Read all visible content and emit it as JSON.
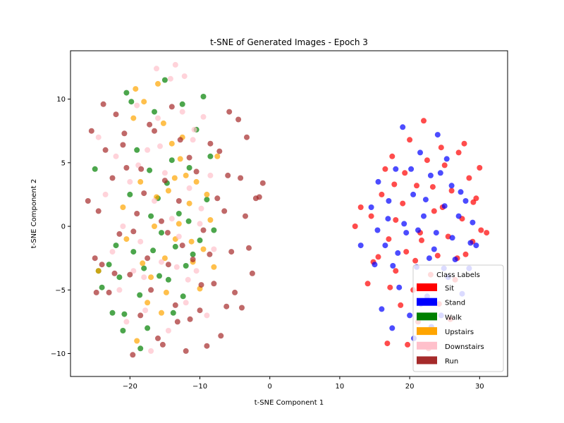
{
  "chart_data": {
    "type": "scatter",
    "title": "t-SNE of Generated Images - Epoch 3",
    "xlabel": "t-SNE Component 1",
    "ylabel": "t-SNE Component 2",
    "xlim": [
      -28.5,
      34.0
    ],
    "ylim": [
      -11.8,
      13.8
    ],
    "xticks": [
      -20,
      -10,
      0,
      10,
      20,
      30
    ],
    "yticks": [
      -10,
      -5,
      0,
      5,
      10
    ],
    "grid": false,
    "legend": {
      "title": "Class Labels",
      "placement": "lower right",
      "entries": [
        {
          "label": "Sit",
          "color": "#ff0000"
        },
        {
          "label": "Stand",
          "color": "#0000ff"
        },
        {
          "label": "Walk",
          "color": "#008000"
        },
        {
          "label": "Upstairs",
          "color": "#ffa500"
        },
        {
          "label": "Downstairs",
          "color": "#ffc0cb"
        },
        {
          "label": "Run",
          "color": "#a52a2a"
        }
      ]
    },
    "series": [
      {
        "name": "Sit",
        "color": "#ff0000",
        "points": [
          [
            13,
            1.5
          ],
          [
            14,
            -4.5
          ],
          [
            14.8,
            -2.8
          ],
          [
            16,
            2.5
          ],
          [
            16.5,
            4.5
          ],
          [
            17,
            -1
          ],
          [
            17.5,
            5.5
          ],
          [
            18,
            0.5
          ],
          [
            18,
            -3.5
          ],
          [
            19,
            1.8
          ],
          [
            19.5,
            -2
          ],
          [
            20,
            6.8
          ],
          [
            20.5,
            -5
          ],
          [
            21,
            3.2
          ],
          [
            21.5,
            -0.5
          ],
          [
            22,
            8.3
          ],
          [
            22.5,
            5.2
          ],
          [
            23,
            -3.8
          ],
          [
            23.5,
            1.2
          ],
          [
            24,
            -2.3
          ],
          [
            24.5,
            6.2
          ],
          [
            25,
            4.8
          ],
          [
            25.5,
            -0.8
          ],
          [
            26,
            2.8
          ],
          [
            26.5,
            -4.2
          ],
          [
            27,
            5.8
          ],
          [
            27.5,
            0.6
          ],
          [
            28,
            -2.2
          ],
          [
            28.5,
            3.8
          ],
          [
            29,
            -1.2
          ],
          [
            29.5,
            2.2
          ],
          [
            30,
            4.6
          ],
          [
            30.2,
            -0.3
          ],
          [
            31,
            -0.5
          ],
          [
            16.8,
            -9.2
          ],
          [
            19.7,
            -9.3
          ],
          [
            18.7,
            -6.2
          ],
          [
            21.2,
            -7.5
          ],
          [
            24.2,
            -6.1
          ],
          [
            25.8,
            -7.3
          ],
          [
            22.7,
            -9.6
          ],
          [
            20.8,
            -2.7
          ],
          [
            17.8,
            3.3
          ],
          [
            26.8,
            -2.5
          ],
          [
            23.3,
            3.1
          ],
          [
            12.2,
            0
          ],
          [
            14.5,
            0.8
          ],
          [
            15.5,
            -2.4
          ],
          [
            27.8,
            6.5
          ],
          [
            29.1,
            1.9
          ],
          [
            21.7,
            -1.1
          ],
          [
            19.3,
            4.2
          ],
          [
            24.7,
            1.5
          ],
          [
            17.2,
            -4.8
          ]
        ]
      },
      {
        "name": "Stand",
        "color": "#0000ff",
        "points": [
          [
            13,
            -1.5
          ],
          [
            14.5,
            1.5
          ],
          [
            15,
            -3
          ],
          [
            15.5,
            3.5
          ],
          [
            16,
            -6.5
          ],
          [
            16.5,
            -1.5
          ],
          [
            17,
            2
          ],
          [
            17.5,
            -8
          ],
          [
            18,
            4.5
          ],
          [
            18.5,
            -4.8
          ],
          [
            19,
            7.8
          ],
          [
            19.5,
            -0.5
          ],
          [
            20,
            -7
          ],
          [
            20.5,
            2.5
          ],
          [
            21,
            -3.2
          ],
          [
            21.5,
            5.8
          ],
          [
            22,
            0.8
          ],
          [
            22.5,
            -5.5
          ],
          [
            23,
            4
          ],
          [
            23.5,
            -1.8
          ],
          [
            24,
            7.2
          ],
          [
            24.5,
            -7
          ],
          [
            25,
            1.6
          ],
          [
            25.5,
            -4
          ],
          [
            26,
            3.2
          ],
          [
            26.5,
            -2.6
          ],
          [
            27,
            0.8
          ],
          [
            27.5,
            -5.3
          ],
          [
            28,
            2
          ],
          [
            28.5,
            -3.3
          ],
          [
            29,
            0.3
          ],
          [
            29.5,
            -1.5
          ],
          [
            22.3,
            2.1
          ],
          [
            21.2,
            -0.3
          ],
          [
            23.8,
            -0.5
          ],
          [
            20.2,
            4.5
          ],
          [
            24.4,
            4.2
          ],
          [
            18.3,
            -2.1
          ],
          [
            26.1,
            -0.9
          ],
          [
            19.2,
            0.2
          ],
          [
            22.8,
            -2.5
          ],
          [
            25.3,
            5.3
          ],
          [
            16.9,
            0.6
          ],
          [
            21.6,
            -6.1
          ],
          [
            23.1,
            -7.9
          ],
          [
            20.6,
            -8.8
          ],
          [
            27.3,
            2.7
          ],
          [
            17.6,
            -3.1
          ],
          [
            15.4,
            -0.3
          ],
          [
            28.7,
            -1.3
          ],
          [
            24.9,
            -3.3
          ]
        ]
      },
      {
        "name": "Walk",
        "color": "#008000",
        "points": [
          [
            -25,
            4.5
          ],
          [
            -24.5,
            -3.5
          ],
          [
            -24,
            -4.8
          ],
          [
            -23,
            -3
          ],
          [
            -22.5,
            -6.8
          ],
          [
            -22,
            -1.5
          ],
          [
            -21.5,
            -4
          ],
          [
            -21,
            -8.2
          ],
          [
            -20.5,
            10.5
          ],
          [
            -20,
            2.5
          ],
          [
            -19.5,
            -2
          ],
          [
            -19,
            6
          ],
          [
            -18.5,
            -9.6
          ],
          [
            -18,
            -3.3
          ],
          [
            -17.5,
            -8
          ],
          [
            -17,
            0.8
          ],
          [
            -16.5,
            9
          ],
          [
            -16,
            2.2
          ],
          [
            -15.5,
            -0.5
          ],
          [
            -15,
            11.5
          ],
          [
            -14.5,
            -4.2
          ],
          [
            -14,
            5.2
          ],
          [
            -13.5,
            -1.6
          ],
          [
            -13,
            1
          ],
          [
            -12.5,
            9.6
          ],
          [
            -12,
            -3.1
          ],
          [
            -11.5,
            4.6
          ],
          [
            -11,
            -2.2
          ],
          [
            -10.5,
            7.6
          ],
          [
            -10,
            -1.1
          ],
          [
            -9.5,
            10.2
          ],
          [
            -9,
            2.1
          ],
          [
            -8.5,
            5.5
          ],
          [
            -8,
            -0.3
          ],
          [
            -19.8,
            9.8
          ],
          [
            -18.6,
            -5.4
          ],
          [
            -17.2,
            4.4
          ],
          [
            -13.8,
            -6.8
          ],
          [
            -12.4,
            -5.5
          ],
          [
            -16.7,
            -1.9
          ],
          [
            -11.6,
            0.4
          ],
          [
            -14.7,
            3.4
          ],
          [
            -20.8,
            -6.9
          ],
          [
            -15.8,
            -3.9
          ]
        ]
      },
      {
        "name": "Upstairs",
        "color": "#ffa500",
        "points": [
          [
            -24.5,
            -3.5
          ],
          [
            -21,
            1.5
          ],
          [
            -20.5,
            -1
          ],
          [
            -19.5,
            8.5
          ],
          [
            -19,
            -9
          ],
          [
            -18.5,
            3.5
          ],
          [
            -18,
            9.8
          ],
          [
            -17.5,
            -6
          ],
          [
            -17,
            -4
          ],
          [
            -16.5,
            0
          ],
          [
            -16,
            11.2
          ],
          [
            -15.5,
            -6.8
          ],
          [
            -15,
            -2.5
          ],
          [
            -14.5,
            2.8
          ],
          [
            -14,
            6.5
          ],
          [
            -13.5,
            -1
          ],
          [
            -13,
            0.2
          ],
          [
            -12.5,
            7
          ],
          [
            -12,
            4
          ],
          [
            -11.5,
            1.8
          ],
          [
            -11,
            -2.8
          ],
          [
            -10.5,
            3.5
          ],
          [
            -10,
            -4.9
          ],
          [
            -9.5,
            -1.8
          ],
          [
            -9,
            2.5
          ],
          [
            -8.5,
            0.5
          ],
          [
            -8,
            -3.2
          ],
          [
            -7.5,
            5.5
          ],
          [
            -19.2,
            10.8
          ],
          [
            -18.2,
            -2.9
          ],
          [
            -15.2,
            8.1
          ],
          [
            -12.8,
            5.3
          ],
          [
            -11.2,
            -1.2
          ],
          [
            -14.8,
            -5.2
          ],
          [
            -16.2,
            2.3
          ],
          [
            -13.6,
            3.8
          ]
        ]
      },
      {
        "name": "Downstairs",
        "color": "#ffc0cb",
        "points": [
          [
            -24.5,
            7
          ],
          [
            -23.5,
            2.5
          ],
          [
            -22.5,
            -2
          ],
          [
            -22,
            5.5
          ],
          [
            -21.5,
            -5
          ],
          [
            -21,
            0
          ],
          [
            -20.5,
            -7.5
          ],
          [
            -20,
            3.5
          ],
          [
            -19.5,
            -3.5
          ],
          [
            -19,
            9.5
          ],
          [
            -18.5,
            -1.2
          ],
          [
            -18,
            -4
          ],
          [
            -17.5,
            6
          ],
          [
            -17,
            -9.8
          ],
          [
            -16.5,
            2
          ],
          [
            -16,
            8.5
          ],
          [
            -15.5,
            -2.8
          ],
          [
            -15,
            4.2
          ],
          [
            -14.5,
            -8.2
          ],
          [
            -14,
            0.6
          ],
          [
            -13.5,
            12.7
          ],
          [
            -13,
            -0.8
          ],
          [
            -12.5,
            9
          ],
          [
            -12,
            -6
          ],
          [
            -11.5,
            3
          ],
          [
            -11,
            6.8
          ],
          [
            -10.5,
            -3.5
          ],
          [
            -10,
            0.2
          ],
          [
            -9.5,
            8.6
          ],
          [
            -9,
            -7
          ],
          [
            -8.5,
            4
          ],
          [
            -8,
            -1.8
          ],
          [
            -16.2,
            12.4
          ],
          [
            -14.2,
            11.6
          ],
          [
            -12.2,
            11.8
          ],
          [
            -10.8,
            7.6
          ],
          [
            -17.8,
            -6.6
          ],
          [
            -13.3,
            -3.2
          ],
          [
            -15.7,
            6.3
          ],
          [
            -11.7,
            -4.2
          ],
          [
            -9.8,
            1.4
          ],
          [
            -18.8,
            4.8
          ]
        ]
      },
      {
        "name": "Run",
        "color": "#a52a2a",
        "points": [
          [
            -26,
            2
          ],
          [
            -25.5,
            7.5
          ],
          [
            -25,
            -2.5
          ],
          [
            -24.5,
            1.2
          ],
          [
            -24,
            -3
          ],
          [
            -23.5,
            6
          ],
          [
            -23,
            -5.2
          ],
          [
            -22.5,
            3.8
          ],
          [
            -22,
            8.8
          ],
          [
            -21.5,
            -0.6
          ],
          [
            -21,
            6.4
          ],
          [
            -20.5,
            4.6
          ],
          [
            -20,
            -3.8
          ],
          [
            -19.5,
            -0.4
          ],
          [
            -19,
            1
          ],
          [
            -18.5,
            -7
          ],
          [
            -18,
            2.6
          ],
          [
            -17.5,
            -2.5
          ],
          [
            -17,
            -5
          ],
          [
            -16.5,
            7.5
          ],
          [
            -16,
            -8.8
          ],
          [
            -15.5,
            0.4
          ],
          [
            -15,
            3.6
          ],
          [
            -14.5,
            -3
          ],
          [
            -14,
            9.4
          ],
          [
            -13.5,
            -6.2
          ],
          [
            -13,
            2
          ],
          [
            -12.5,
            -1.5
          ],
          [
            -12,
            -9.8
          ],
          [
            -11.5,
            5.4
          ],
          [
            -11,
            -2.6
          ],
          [
            -10.5,
            4.3
          ],
          [
            -10,
            -6.6
          ],
          [
            -9.5,
            -0.3
          ],
          [
            -9,
            -9.4
          ],
          [
            -8.5,
            6.5
          ],
          [
            -8,
            -4.5
          ],
          [
            -7.5,
            2.2
          ],
          [
            -7,
            -8.6
          ],
          [
            -6.5,
            1.2
          ],
          [
            -6,
            4
          ],
          [
            -5.5,
            -2
          ],
          [
            -5,
            -5.2
          ],
          [
            -4.5,
            8.4
          ],
          [
            -4,
            -6.4
          ],
          [
            -3.5,
            0.8
          ],
          [
            -3,
            -1.7
          ],
          [
            -2.5,
            -3.7
          ],
          [
            -2,
            2.2
          ],
          [
            -1.5,
            2.3
          ],
          [
            -1,
            3.4
          ],
          [
            -3.3,
            7
          ],
          [
            -5.8,
            9
          ],
          [
            -7.2,
            5.9
          ],
          [
            -9.8,
            -4.6
          ],
          [
            -12.8,
            6.8
          ],
          [
            -15.3,
            -9.3
          ],
          [
            -18.4,
            4.5
          ],
          [
            -20.8,
            7.3
          ],
          [
            -22.2,
            -3.7
          ],
          [
            -24.8,
            -5.2
          ],
          [
            -23.8,
            9.6
          ],
          [
            -19.6,
            -10.1
          ],
          [
            -17.2,
            8
          ],
          [
            -14.6,
            -0.5
          ],
          [
            -11.4,
            -7.3
          ],
          [
            -8.6,
            -2.2
          ],
          [
            -6.2,
            -6.3
          ],
          [
            -4.2,
            3.8
          ],
          [
            -13.2,
            -7.5
          ]
        ]
      }
    ]
  }
}
